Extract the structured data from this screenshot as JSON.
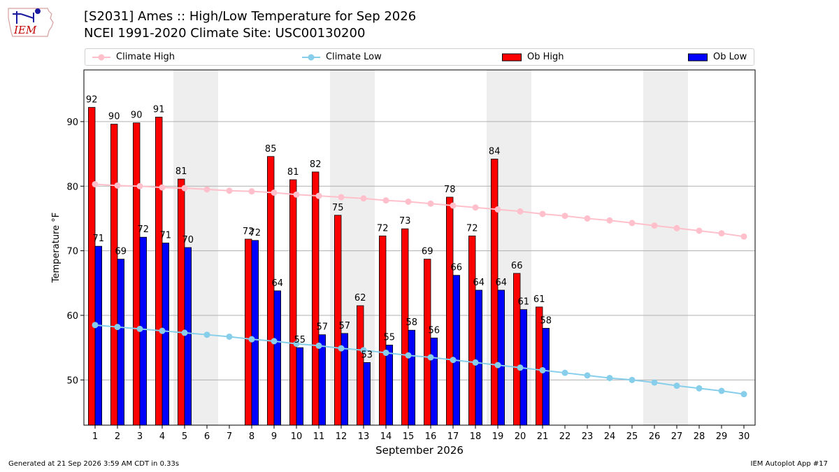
{
  "header": {
    "title_line1": "[S2031] Ames :: High/Low Temperature for Sep 2026",
    "title_line2": "NCEI 1991-2020 Climate Site: USC00130200",
    "logo_text": "IEM"
  },
  "footer": {
    "generated": "Generated at 21 Sep 2026 3:59 AM CDT in 0.33s",
    "app": "IEM Autoplot App #17"
  },
  "colors": {
    "climate_high": "#ffc0cb",
    "climate_low": "#87ceeb",
    "ob_high": "#ff0000",
    "ob_low": "#0000ff",
    "weekend_shade": "#eeeeee",
    "grid": "#b0b0b0"
  },
  "chart_data": {
    "type": "bar",
    "xlabel": "September 2026",
    "ylabel": "Temperature °F",
    "xlim": [
      0.5,
      30.5
    ],
    "ylim": [
      43,
      98
    ],
    "yticks": [
      50,
      60,
      70,
      80,
      90
    ],
    "grid": "horizontal",
    "legend_placement": "top",
    "categories": [
      1,
      2,
      3,
      4,
      5,
      6,
      7,
      8,
      9,
      10,
      11,
      12,
      13,
      14,
      15,
      16,
      17,
      18,
      19,
      20,
      21,
      22,
      23,
      24,
      25,
      26,
      27,
      28,
      29,
      30
    ],
    "shaded_days": [
      5,
      6,
      12,
      13,
      19,
      20,
      26,
      27
    ],
    "series": [
      {
        "name": "Climate High",
        "kind": "line",
        "values": [
          80.3,
          80.1,
          80.0,
          79.8,
          79.7,
          79.5,
          79.3,
          79.2,
          79.0,
          78.7,
          78.5,
          78.3,
          78.1,
          77.8,
          77.6,
          77.3,
          77.0,
          76.7,
          76.4,
          76.1,
          75.7,
          75.4,
          75.0,
          74.7,
          74.3,
          73.9,
          73.5,
          73.1,
          72.7,
          72.2
        ]
      },
      {
        "name": "Climate Low",
        "kind": "line",
        "values": [
          58.5,
          58.2,
          57.9,
          57.6,
          57.3,
          57.0,
          56.7,
          56.3,
          56.0,
          55.6,
          55.3,
          54.9,
          54.6,
          54.2,
          53.8,
          53.5,
          53.1,
          52.7,
          52.3,
          51.9,
          51.5,
          51.1,
          50.7,
          50.3,
          50.0,
          49.6,
          49.1,
          48.7,
          48.3,
          47.8
        ]
      },
      {
        "name": "Ob High",
        "kind": "bar",
        "values": [
          92.2,
          89.6,
          89.8,
          90.7,
          81.1,
          null,
          null,
          71.8,
          84.6,
          81.0,
          82.2,
          75.5,
          61.5,
          72.3,
          73.4,
          68.7,
          78.3,
          72.3,
          84.2,
          66.5,
          61.3,
          null,
          null,
          null,
          null,
          null,
          null,
          null,
          null,
          null
        ],
        "labels": [
          "92",
          "90",
          "90",
          "91",
          "81",
          "",
          "",
          "72",
          "85",
          "81",
          "82",
          "75",
          "62",
          "72",
          "73",
          "69",
          "78",
          "72",
          "84",
          "66",
          "61",
          "",
          "",
          "",
          "",
          "",
          "",
          "",
          "",
          ""
        ]
      },
      {
        "name": "Ob Low",
        "kind": "bar",
        "values": [
          70.7,
          68.7,
          72.1,
          71.2,
          70.5,
          null,
          null,
          71.6,
          63.8,
          55.0,
          57.0,
          57.2,
          52.7,
          55.4,
          57.7,
          56.5,
          66.2,
          63.9,
          63.9,
          60.9,
          58.0,
          null,
          null,
          null,
          null,
          null,
          null,
          null,
          null,
          null
        ],
        "labels": [
          "71",
          "69",
          "72",
          "71",
          "70",
          "",
          "",
          "72",
          "64",
          "55",
          "57",
          "57",
          "53",
          "55",
          "58",
          "56",
          "66",
          "64",
          "64",
          "61",
          "58",
          "",
          "",
          "",
          "",
          "",
          "",
          "",
          "",
          ""
        ]
      }
    ]
  }
}
